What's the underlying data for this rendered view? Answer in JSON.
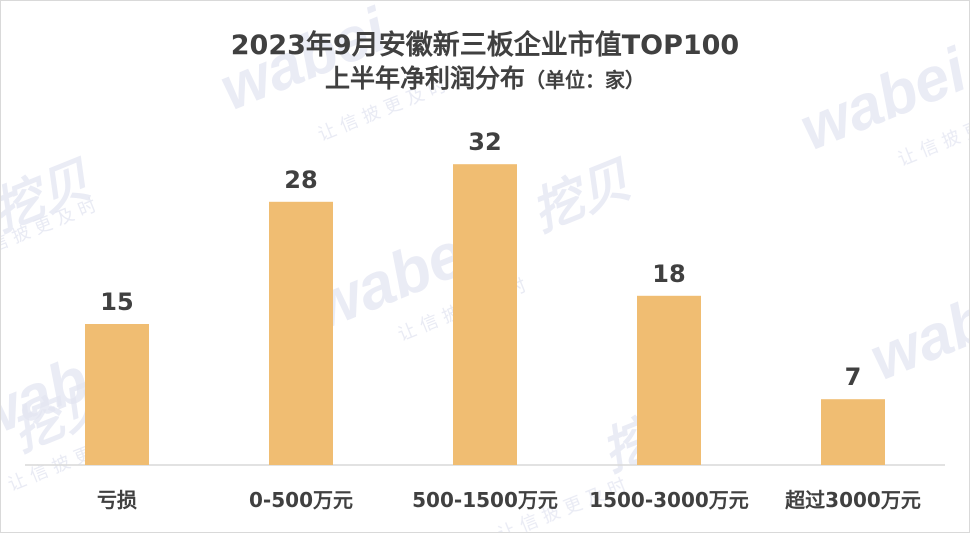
{
  "title_main": "2023年9月安徽新三板企业市值TOP100",
  "title_sub": "上半年净利润分布",
  "title_unit": "（单位：家）",
  "watermark": {
    "brand": "wabei",
    "brand_cn": "挖贝",
    "tagline": "让 信 披 更 及 时"
  },
  "colors": {
    "bar": "#F0BD72",
    "label": "#404040",
    "axis": "#d9d9d9"
  },
  "chart_data": {
    "type": "bar",
    "title": "2023年9月安徽新三板企业市值TOP100 上半年净利润分布（单位：家）",
    "categories": [
      "亏损",
      "0-500万元",
      "500-1500万元",
      "1500-3000万元",
      "超过3000万元"
    ],
    "values": [
      15,
      28,
      32,
      18,
      7
    ],
    "ylim": [
      0,
      40
    ],
    "grid": false,
    "legend": "none"
  }
}
